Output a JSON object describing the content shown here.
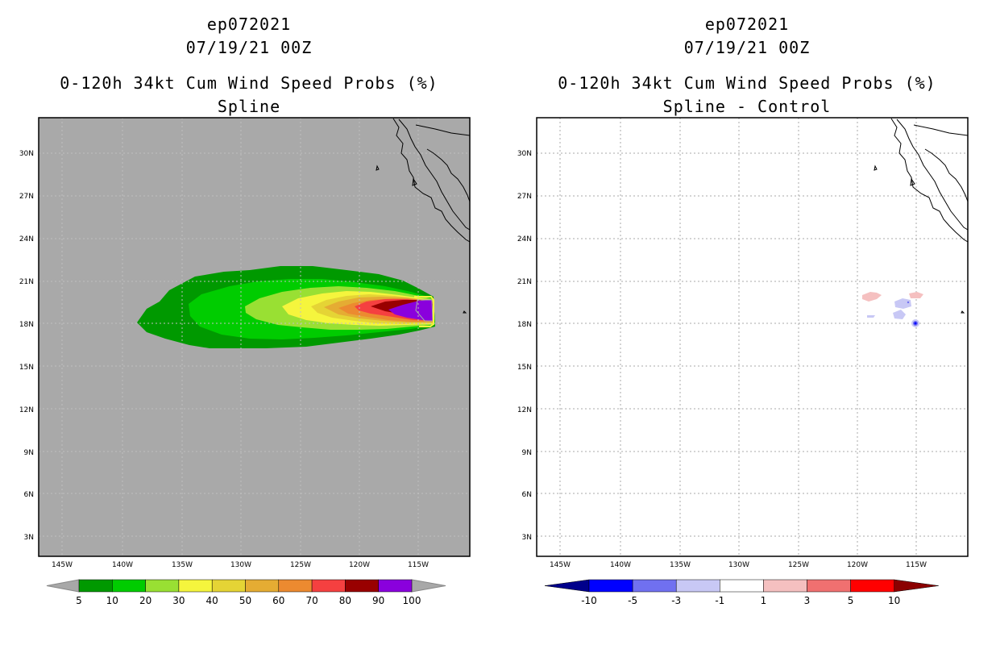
{
  "panels": [
    {
      "title_lines": [
        "ep072021",
        "07/19/21 00Z",
        "0-120h 34kt Cum Wind Speed Probs (%)",
        "Spline"
      ],
      "lat_labels": [
        "30N",
        "27N",
        "24N",
        "21N",
        "18N",
        "15N",
        "12N",
        "9N",
        "6N",
        "3N"
      ],
      "lon_labels": [
        "145W",
        "140W",
        "135W",
        "130W",
        "125W",
        "120W",
        "115W"
      ],
      "colorbar": {
        "labels": [
          "5",
          "10",
          "20",
          "30",
          "40",
          "50",
          "60",
          "70",
          "80",
          "90",
          "100"
        ],
        "colors": [
          "#009900",
          "#00cc00",
          "#99e033",
          "#f5f53d",
          "#e5d435",
          "#e5ac33",
          "#ec8a30",
          "#f54040",
          "#990000",
          "#8a00dd"
        ],
        "end_color": "#a8a8a8"
      },
      "background_color": "#a9a9a9"
    },
    {
      "title_lines": [
        "ep072021",
        "07/19/21 00Z",
        "0-120h 34kt Cum Wind Speed Probs (%)",
        "Spline - Control"
      ],
      "lat_labels": [
        "30N",
        "27N",
        "24N",
        "21N",
        "18N",
        "15N",
        "12N",
        "9N",
        "6N",
        "3N"
      ],
      "lon_labels": [
        "145W",
        "140W",
        "135W",
        "130W",
        "125W",
        "120W",
        "115W"
      ],
      "colorbar": {
        "labels": [
          "-10",
          "-5",
          "-3",
          "-1",
          "1",
          "3",
          "5",
          "10"
        ],
        "colors": [
          "#0000ff",
          "#7070f0",
          "#c8c8f5",
          "#ffffff",
          "#f5c0c0",
          "#f07070",
          "#ff0000"
        ],
        "low_end_color": "#00008b",
        "high_end_color": "#8b0000"
      },
      "background_color": "#ffffff"
    }
  ]
}
